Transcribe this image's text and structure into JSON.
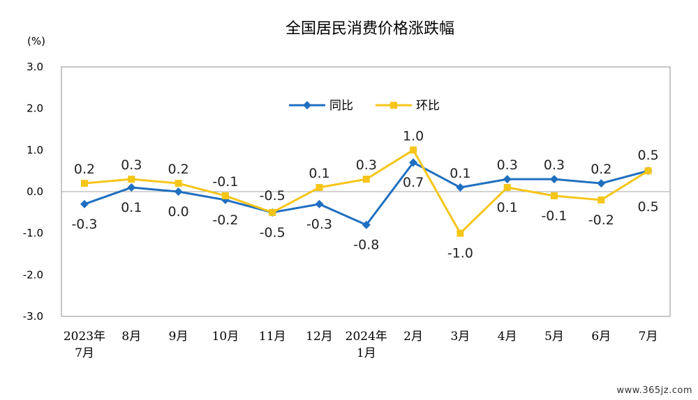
{
  "watermark": "www.365jz.com",
  "chart_data": {
    "type": "line",
    "title": "全国居民消费价格涨跌幅",
    "ylabel": "(%)",
    "ylim": [
      -3.0,
      3.0
    ],
    "yticks": [
      "3.0",
      "2.0",
      "1.0",
      "0.0",
      "-1.0",
      "-2.0",
      "-3.0"
    ],
    "yticks_values": [
      3,
      2,
      1,
      0,
      -1,
      -2,
      -3
    ],
    "categories": [
      [
        "2023年",
        "7月"
      ],
      [
        "8月"
      ],
      [
        "9月"
      ],
      [
        "10月"
      ],
      [
        "11月"
      ],
      [
        "12月"
      ],
      [
        "2024年",
        "1月"
      ],
      [
        "2月"
      ],
      [
        "3月"
      ],
      [
        "4月"
      ],
      [
        "5月"
      ],
      [
        "6月"
      ],
      [
        "7月"
      ]
    ],
    "legend_position": "top-center",
    "grid": false,
    "series": [
      {
        "name": "同比",
        "color": "#1f6fc0",
        "marker": "diamond",
        "values": [
          -0.3,
          0.1,
          0.0,
          -0.2,
          -0.5,
          -0.3,
          -0.8,
          0.7,
          0.1,
          0.3,
          0.3,
          0.2,
          0.5
        ],
        "labels": [
          "-0.3",
          "0.1",
          "0.0",
          "-0.2",
          "-0.5",
          "-0.3",
          "-0.8",
          "0.7",
          "0.1",
          "0.3",
          "0.3",
          "0.2",
          "0.5"
        ]
      },
      {
        "name": "环比",
        "color": "#f5c518",
        "marker": "square",
        "values": [
          0.2,
          0.3,
          0.2,
          -0.1,
          -0.5,
          0.1,
          0.3,
          1.0,
          -1.0,
          0.1,
          -0.1,
          -0.2,
          0.5
        ],
        "labels": [
          "0.2",
          "0.3",
          "0.2",
          "-0.1",
          "-0.5",
          "0.1",
          "0.3",
          "1.0",
          "-1.0",
          "0.1",
          "-0.1",
          "-0.2",
          "0.5"
        ]
      }
    ]
  }
}
